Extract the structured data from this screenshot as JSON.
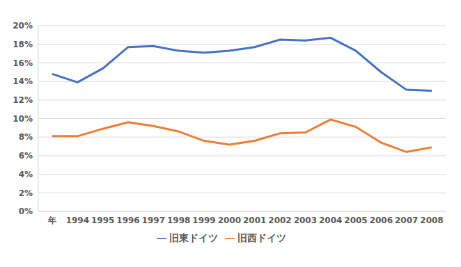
{
  "chart_data": {
    "type": "line",
    "categories": [
      "年",
      "1994",
      "1995",
      "1996",
      "1997",
      "1998",
      "1999",
      "2000",
      "2001",
      "2002",
      "2003",
      "2004",
      "2005",
      "2006",
      "2007",
      "2008"
    ],
    "series": [
      {
        "name": "旧東ドイツ",
        "color": "#4472c4",
        "values": [
          14.8,
          13.9,
          15.4,
          17.7,
          17.8,
          17.3,
          17.1,
          17.3,
          17.7,
          18.5,
          18.4,
          18.7,
          17.3,
          15.0,
          13.1,
          13.0
        ]
      },
      {
        "name": "旧西ドイツ",
        "color": "#ed7d31",
        "values": [
          8.1,
          8.1,
          8.9,
          9.6,
          9.2,
          8.6,
          7.6,
          7.2,
          7.6,
          8.4,
          8.5,
          9.9,
          9.1,
          7.4,
          6.4,
          6.9
        ]
      }
    ],
    "ylim": [
      0,
      20
    ],
    "yticks": [
      {
        "value": 0,
        "label": "0%"
      },
      {
        "value": 2,
        "label": "2%"
      },
      {
        "value": 4,
        "label": "4%"
      },
      {
        "value": 6,
        "label": "6%"
      },
      {
        "value": 8,
        "label": "8%"
      },
      {
        "value": 10,
        "label": "10%"
      },
      {
        "value": 12,
        "label": "12%"
      },
      {
        "value": 14,
        "label": "14%"
      },
      {
        "value": 16,
        "label": "16%"
      },
      {
        "value": 18,
        "label": "18%"
      },
      {
        "value": 20,
        "label": "20%"
      }
    ],
    "grid": true,
    "legend": "bottom"
  }
}
